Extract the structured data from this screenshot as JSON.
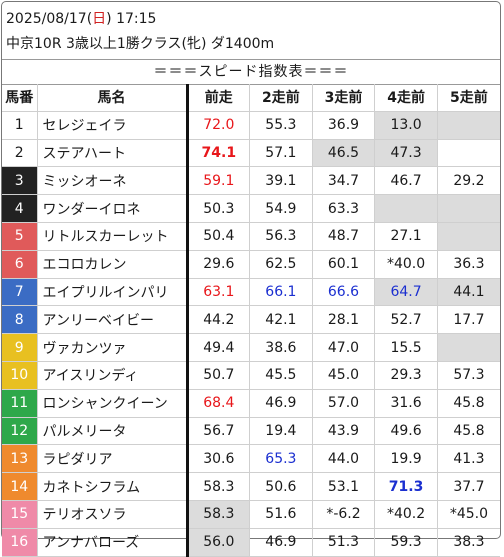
{
  "header": {
    "date": "2025/08/17",
    "weekday_open": "(",
    "weekday": "日",
    "weekday_close": ")",
    "time": "17:15",
    "race": "中京10R 3歳以上1勝クラス(牝) ダ1400m"
  },
  "banner": "＝＝＝スピード指数表＝＝＝",
  "columns": [
    "馬番",
    "馬名",
    "前走",
    "2走前",
    "3走前",
    "4走前",
    "5走前"
  ],
  "styles": {
    "red": "#e8161a",
    "blue": "#1b2fd0",
    "gray_cell": "#dcdcdc"
  },
  "gate_colors": {
    "1": "#ffffff",
    "2": "#ffffff",
    "3": "#222222",
    "4": "#222222",
    "5": "#e05a5a",
    "6": "#e05a5a",
    "7": "#3b6cc4",
    "8": "#3b6cc4",
    "9": "#e8c021",
    "10": "#e8c021",
    "11": "#2ea84a",
    "12": "#2ea84a",
    "13": "#ef8a2e",
    "14": "#ef8a2e",
    "15": "#ef8aa8",
    "16": "#ef8aa8"
  },
  "horses": [
    {
      "num": "1",
      "gate": 1,
      "name": "セレジェイラ",
      "v": [
        {
          "t": "72.0",
          "s": "red"
        },
        {
          "t": "55.3"
        },
        {
          "t": "36.9"
        },
        {
          "t": "13.0",
          "g": true
        },
        {
          "t": "",
          "g": true
        }
      ]
    },
    {
      "num": "2",
      "gate": 1,
      "name": "ステアハート",
      "v": [
        {
          "t": "74.1",
          "s": "red-bold"
        },
        {
          "t": "57.1"
        },
        {
          "t": "46.5",
          "g": true
        },
        {
          "t": "47.3",
          "g": true
        },
        {
          "t": ""
        }
      ]
    },
    {
      "num": "3",
      "gate": 2,
      "name": "ミッシオーネ",
      "v": [
        {
          "t": "59.1",
          "s": "red"
        },
        {
          "t": "39.1"
        },
        {
          "t": "34.7"
        },
        {
          "t": "46.7"
        },
        {
          "t": "29.2"
        }
      ]
    },
    {
      "num": "4",
      "gate": 2,
      "name": "ワンダーイロネ",
      "v": [
        {
          "t": "50.3"
        },
        {
          "t": "54.9"
        },
        {
          "t": "63.3"
        },
        {
          "t": "",
          "g": true
        },
        {
          "t": "",
          "g": true
        }
      ]
    },
    {
      "num": "5",
      "gate": 3,
      "name": "リトルスカーレット",
      "v": [
        {
          "t": "50.4"
        },
        {
          "t": "56.3"
        },
        {
          "t": "48.7"
        },
        {
          "t": "27.1"
        },
        {
          "t": "",
          "g": true
        }
      ]
    },
    {
      "num": "6",
      "gate": 3,
      "name": "エコロカレン",
      "v": [
        {
          "t": "29.6"
        },
        {
          "t": "62.5"
        },
        {
          "t": "60.1"
        },
        {
          "t": "*40.0"
        },
        {
          "t": "36.3"
        }
      ]
    },
    {
      "num": "7",
      "gate": 4,
      "name": "エイプリルインパリ",
      "v": [
        {
          "t": "63.1",
          "s": "red"
        },
        {
          "t": "66.1",
          "s": "blue"
        },
        {
          "t": "66.6",
          "s": "blue"
        },
        {
          "t": "64.7",
          "s": "blue",
          "g": true
        },
        {
          "t": "44.1",
          "g": true
        }
      ]
    },
    {
      "num": "8",
      "gate": 4,
      "name": "アンリーベイビー",
      "v": [
        {
          "t": "44.2"
        },
        {
          "t": "42.1"
        },
        {
          "t": "28.1"
        },
        {
          "t": "52.7"
        },
        {
          "t": "17.7"
        }
      ]
    },
    {
      "num": "9",
      "gate": 5,
      "name": "ヴァカンツァ",
      "v": [
        {
          "t": "49.4"
        },
        {
          "t": "38.6"
        },
        {
          "t": "47.0"
        },
        {
          "t": "15.5"
        },
        {
          "t": "",
          "g": true
        }
      ]
    },
    {
      "num": "10",
      "gate": 5,
      "name": "アイスリンディ",
      "v": [
        {
          "t": "50.7"
        },
        {
          "t": "45.5"
        },
        {
          "t": "45.0"
        },
        {
          "t": "29.3"
        },
        {
          "t": "57.3"
        }
      ]
    },
    {
      "num": "11",
      "gate": 6,
      "name": "ロンシャンクイーン",
      "v": [
        {
          "t": "68.4",
          "s": "red"
        },
        {
          "t": "46.9"
        },
        {
          "t": "57.0"
        },
        {
          "t": "31.6"
        },
        {
          "t": "45.8"
        }
      ]
    },
    {
      "num": "12",
      "gate": 6,
      "name": "パルメリータ",
      "v": [
        {
          "t": "56.7"
        },
        {
          "t": "19.4"
        },
        {
          "t": "43.9"
        },
        {
          "t": "49.6"
        },
        {
          "t": "45.8"
        }
      ]
    },
    {
      "num": "13",
      "gate": 7,
      "name": "ラピダリア",
      "v": [
        {
          "t": "30.6"
        },
        {
          "t": "65.3",
          "s": "blue"
        },
        {
          "t": "44.0"
        },
        {
          "t": "19.9"
        },
        {
          "t": "41.3"
        }
      ]
    },
    {
      "num": "14",
      "gate": 7,
      "name": "カネトシフラム",
      "v": [
        {
          "t": "58.3"
        },
        {
          "t": "50.6"
        },
        {
          "t": "53.1"
        },
        {
          "t": "71.3",
          "s": "blue-bold"
        },
        {
          "t": "37.7"
        }
      ]
    },
    {
      "num": "15",
      "gate": 8,
      "name": "テリオスソラ",
      "v": [
        {
          "t": "58.3",
          "g": true
        },
        {
          "t": "51.6"
        },
        {
          "t": "*-6.2"
        },
        {
          "t": "*40.2"
        },
        {
          "t": "*45.0"
        }
      ]
    },
    {
      "num": "16",
      "gate": 8,
      "name": "アンナバローズ",
      "v": [
        {
          "t": "56.0",
          "g": true
        },
        {
          "t": "46.9"
        },
        {
          "t": "51.3"
        },
        {
          "t": "59.3"
        },
        {
          "t": "38.3"
        }
      ]
    }
  ]
}
